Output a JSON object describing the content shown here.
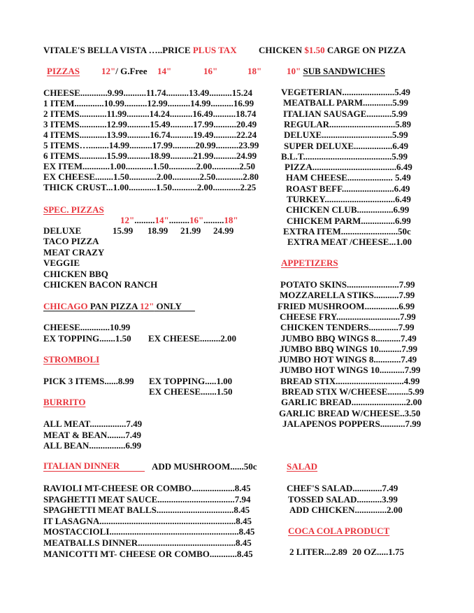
{
  "header": {
    "title_a": "VITALE'S BELLA VISTA …..PRICE ",
    "title_b": "PLUS TAX",
    "chicken_a": "CHICKEN ",
    "chicken_b": "$1.50",
    "chicken_c": " CARGE ON PIZZA"
  },
  "pizzas": {
    "title": "PIZZAS",
    "size_12": "12\"",
    "gfree": "/ G.Free",
    "size_14": "14\"",
    "size_16": "16\"",
    "size_18": "18\"",
    "rows": [
      "CHEESE............9.99..........11.74..........13.49..........15.24",
      "1 ITEM.............10.99..........12.99..........14.99..........16.99",
      "2 ITEMS............11.99..........14.24..........16.49..........18.74",
      "3 ITEMS............12.99..........15.49..........17.99..........20.49",
      "4 ITEMS............13.99..........16.74..........19.49..........22.24",
      "5 ITEMS….........14.99..........17.99..........20.99..........23.99",
      "6 ITEMS............15.99..........18.99..........21.99..........24.99",
      "EX ITEM............1.00............1.50............2.00............2.50",
      "EX CHEESE........1.50............2.00............2.50............2.80",
      "THICK CRUST...1.00............1.50...........2.00............2.25"
    ]
  },
  "spec_pizzas": {
    "title": "SPEC. PIZZAS",
    "sizes": [
      "12\"",
      "14\"",
      "16\"",
      "18\""
    ],
    "size_sep": ".........",
    "deluxe": {
      "name": "DELUXE",
      "prices": [
        "15.99",
        "18.99",
        "21.99",
        "24.99"
      ]
    },
    "items": [
      "TACO PIZZA",
      "MEAT CRAZY",
      "VEGGIE",
      "CHICKEN BBQ",
      "CHICKEN BACON RANCH"
    ]
  },
  "chicago": {
    "title_a": "CHICAGO",
    "title_b": " PAN PIZZA ",
    "title_c": "12\"",
    "title_d": " ONLY      ",
    "cheese": "CHEESE.............10.99",
    "ex_topping": "EX TOPPING.......1.50",
    "ex_cheese": "EX CHEESE.........2.00"
  },
  "stromboli": {
    "title": "STROMBOLI",
    "pick3": "PICK 3 ITEMS......8.99",
    "ex_topping": "EX TOPPING.....1.00",
    "ex_cheese": "EX CHEESE.......1.50"
  },
  "burrito": {
    "title": "BURRITO",
    "rows": [
      "ALL MEAT................7.49",
      "MEAT & BEAN........7.49",
      "ALL BEAN................6.99"
    ]
  },
  "italian_dinner": {
    "title": "ITALIAN DINNER",
    "add_mushroom": "ADD MUSHROOM......50c",
    "rows": [
      "RAVIOLI MT-CHEESE OR COMBO...................8.45",
      "SPAGHETTI  MEAT SAUCE..................................7.94",
      "SPAGHETTI  MEAT BALLS..................................8.45",
      "IT LASAGNA............................................................8.45",
      "MOSTACCIOLI.........................................................8.45",
      "MEATBALLS DINNER...........................................8.45",
      "MANICOTTI MT- CHEESE OR COMBO............8.45"
    ]
  },
  "subs": {
    "title_a": "10\"",
    "title_b": "SUB SANDWICHES",
    "rows": [
      "VEGETERIAN.......................5.49",
      "MEATBALL PARM.............5.99",
      "ITALIAN SAUSAGE...........5.99",
      "REGULAR.............................5.89",
      "DELUXE...............................5.99",
      "SUPER DELUXE.................6.49",
      "B.L.T.......................................5.99",
      "PIZZA.....................................6.49",
      "HAM CHEESE.................... 5.49",
      "ROAST BEFF.......................6.49",
      "TURKEY...............................6.49",
      "CHICKEN CLUB................6.99",
      "CHICKEM PARM...............6.99",
      "EXTRA ITEM.........................50c",
      "EXTRA MEAT /CHEESE...1.00"
    ]
  },
  "appetizers": {
    "title": "APPETIZERS",
    "rows": [
      "POTATO SKINS.......................7.99",
      "MOZZARELLA STIKS...........7.99",
      "FRIED MUSHROOM...............6.99",
      "CHEESE FRY............................7.99",
      "CHICKEN TENDERS.............7.99",
      "JUMBO BBQ WINGS 8...........7.49",
      "JUMBO BBQ WINGS 10..........7.99",
      "JUMBO HOT WINGS  8............7.49",
      "JUMBO HOT WINGS 10...........7.99",
      "BREAD STIX..............................4.99",
      "BREAD STIX W/CHEESE.........5.99",
      "GARLIC BREAD........................2.00",
      "GARLIC BREAD W/CHEESE..3.50",
      "JALAPENOS POPPERS...........7.99"
    ]
  },
  "salad": {
    "title": "SALAD",
    "rows": [
      "CHEF'S SALAD.............7.49",
      "TOSSED SALAD...........3.99",
      "ADD CHICKEN..............2.00"
    ]
  },
  "coca_cola": {
    "title": "COCA COLA PRODUCT",
    "liter": "2 LITER...2.89",
    "oz": "20 OZ.....1.75"
  },
  "colors": {
    "accent_red": "#e8343c",
    "text": "#111111",
    "background": "#ffffff"
  }
}
